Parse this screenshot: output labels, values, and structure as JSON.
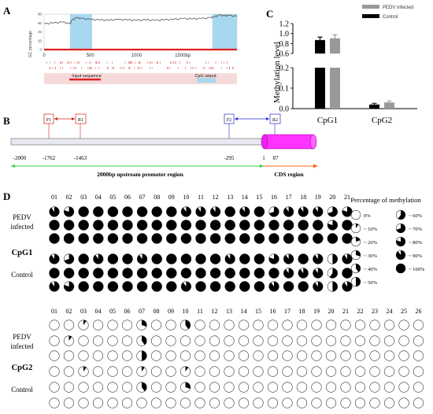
{
  "panels": {
    "A": {
      "letter": "A",
      "ylabel": "GC percentage",
      "x_ticks": [
        "0",
        "500",
        "1000",
        "1500bp"
      ],
      "y_ticks": [
        "0",
        "20",
        "40",
        "60",
        "80"
      ],
      "input_label": "Input sequence",
      "island_label": "CpG island",
      "colors": {
        "line": "#555555",
        "island": "#a8d8f0",
        "axis": "#e02020",
        "bar": "#f6dada"
      }
    },
    "B": {
      "letter": "B",
      "primers": [
        "F1",
        "R1",
        "F2",
        "R2"
      ],
      "positions": [
        "-2000",
        "-1762",
        "-1463",
        "-295",
        "1",
        "87"
      ],
      "upstream_label": "2000bp upstream promoter region",
      "cds_label": "CDS region",
      "colors": {
        "magenta": "#ff33ff",
        "green": "#33cc33",
        "orange": "#ff6622",
        "red": "#d61f1f",
        "blue": "#2a2ad0"
      }
    },
    "C": {
      "letter": "C",
      "ylabel": "Methylation level",
      "legend": [
        "PEDV infected",
        "Control"
      ],
      "upper_ticks": [
        "0.6",
        "0.8",
        "1.0",
        "1.2"
      ],
      "lower_ticks": [
        "0.0",
        "0.1",
        "0.2"
      ]
    },
    "D": {
      "letter": "D",
      "legend_title": "Percentage of methylation",
      "legend_items": [
        {
          "label": "0%",
          "p": 0
        },
        {
          "label": "~ 10%",
          "p": 10
        },
        {
          "label": "~ 20%",
          "p": 20
        },
        {
          "label": "~ 30%",
          "p": 30
        },
        {
          "label": "~ 40%",
          "p": 40
        },
        {
          "label": "~ 50%",
          "p": 50
        },
        {
          "label": "~ 60%",
          "p": 60
        },
        {
          "label": "~ 70%",
          "p": 70
        },
        {
          "label": "~ 80%",
          "p": 80
        },
        {
          "label": "~ 90%",
          "p": 90
        },
        {
          "label": "~ 100%",
          "p": 100
        }
      ],
      "group_labels": {
        "pedv1": "PEDV",
        "pedv2": "infected",
        "control": "Control"
      },
      "cpg1": {
        "label": "CpG1",
        "columns": [
          "01",
          "02",
          "03",
          "04",
          "05",
          "06",
          "07",
          "08",
          "09",
          "10",
          "11",
          "12",
          "13",
          "14",
          "15",
          "16",
          "17",
          "18",
          "19",
          "20",
          "21"
        ],
        "rows": [
          [
            90,
            80,
            100,
            100,
            100,
            100,
            100,
            100,
            100,
            90,
            90,
            90,
            100,
            90,
            100,
            70,
            90,
            90,
            90,
            70,
            80
          ],
          [
            100,
            100,
            100,
            100,
            100,
            100,
            100,
            100,
            100,
            100,
            100,
            100,
            100,
            100,
            100,
            100,
            100,
            100,
            100,
            80,
            100
          ],
          [
            100,
            100,
            100,
            100,
            100,
            100,
            100,
            100,
            100,
            100,
            100,
            100,
            100,
            100,
            100,
            100,
            100,
            100,
            100,
            100,
            100
          ],
          [
            90,
            70,
            100,
            90,
            100,
            100,
            90,
            100,
            100,
            100,
            100,
            100,
            90,
            100,
            100,
            80,
            90,
            100,
            90,
            50,
            90
          ],
          [
            100,
            100,
            100,
            100,
            100,
            100,
            100,
            100,
            100,
            100,
            100,
            100,
            100,
            100,
            100,
            100,
            90,
            90,
            90,
            60,
            100
          ],
          [
            90,
            80,
            100,
            100,
            100,
            100,
            100,
            100,
            100,
            90,
            100,
            100,
            100,
            100,
            100,
            90,
            100,
            100,
            90,
            50,
            90
          ]
        ]
      },
      "cpg2": {
        "label": "CpG2",
        "columns": [
          "01",
          "02",
          "03",
          "04",
          "05",
          "06",
          "07",
          "08",
          "09",
          "10",
          "11",
          "12",
          "13",
          "14",
          "15",
          "16",
          "17",
          "18",
          "19",
          "20",
          "21",
          "22",
          "23",
          "24",
          "25",
          "26"
        ],
        "rows": [
          [
            0,
            0,
            10,
            0,
            0,
            0,
            30,
            0,
            0,
            40,
            0,
            0,
            0,
            0,
            0,
            0,
            0,
            0,
            0,
            0,
            0,
            0,
            0,
            0,
            0,
            0
          ],
          [
            0,
            10,
            0,
            0,
            0,
            0,
            40,
            0,
            0,
            0,
            0,
            0,
            0,
            0,
            0,
            0,
            0,
            0,
            0,
            0,
            0,
            0,
            0,
            0,
            0,
            0
          ],
          [
            0,
            0,
            0,
            0,
            0,
            0,
            50,
            0,
            0,
            0,
            0,
            0,
            0,
            0,
            0,
            0,
            0,
            0,
            0,
            0,
            0,
            0,
            0,
            0,
            0,
            0
          ],
          [
            0,
            0,
            10,
            0,
            0,
            0,
            10,
            0,
            0,
            10,
            0,
            0,
            0,
            0,
            0,
            0,
            0,
            0,
            0,
            0,
            0,
            0,
            0,
            0,
            0,
            0
          ],
          [
            0,
            0,
            0,
            0,
            0,
            0,
            40,
            0,
            0,
            30,
            0,
            0,
            0,
            0,
            0,
            0,
            0,
            0,
            0,
            0,
            0,
            0,
            0,
            0,
            0,
            0
          ],
          [
            0,
            0,
            0,
            0,
            0,
            0,
            0,
            0,
            0,
            0,
            0,
            0,
            0,
            0,
            0,
            0,
            0,
            0,
            0,
            0,
            0,
            0,
            0,
            0,
            0,
            0
          ]
        ]
      }
    }
  },
  "chart_data": [
    {
      "type": "line",
      "title": "",
      "ylabel": "GC percentage",
      "xlabel": "",
      "xlim": [
        0,
        2087
      ],
      "ylim": [
        0,
        80
      ],
      "x": [
        0,
        100,
        200,
        280,
        300,
        350,
        400,
        500,
        600,
        700,
        800,
        900,
        1000,
        1100,
        1200,
        1300,
        1400,
        1500,
        1600,
        1700,
        1800,
        1850,
        1900,
        1950,
        2000,
        2087
      ],
      "series": [
        {
          "values": [
            58,
            60,
            62,
            58,
            66,
            72,
            70,
            68,
            67,
            66,
            68,
            67,
            66,
            67,
            66,
            67,
            68,
            70,
            69,
            70,
            72,
            74,
            78,
            76,
            77,
            75
          ]
        }
      ],
      "cpg_islands": [
        [
          280,
          520
        ],
        [
          1820,
          2087
        ]
      ]
    },
    {
      "type": "bar",
      "title": "",
      "xlabel": "",
      "ylabel": "Methylation level",
      "categories": [
        "CpG1",
        "CpG2"
      ],
      "series": [
        {
          "name": "PEDV infected",
          "color": "#999999",
          "values": [
            0.905,
            0.03
          ],
          "errors": [
            0.07,
            0.007
          ]
        },
        {
          "name": "Control",
          "color": "#000000",
          "values": [
            0.87,
            0.02
          ],
          "errors": [
            0.06,
            0.006
          ]
        }
      ],
      "ylim_lower": [
        0,
        0.2
      ],
      "ylim_upper": [
        0.6,
        1.2
      ],
      "legend_position": "top-right"
    }
  ]
}
